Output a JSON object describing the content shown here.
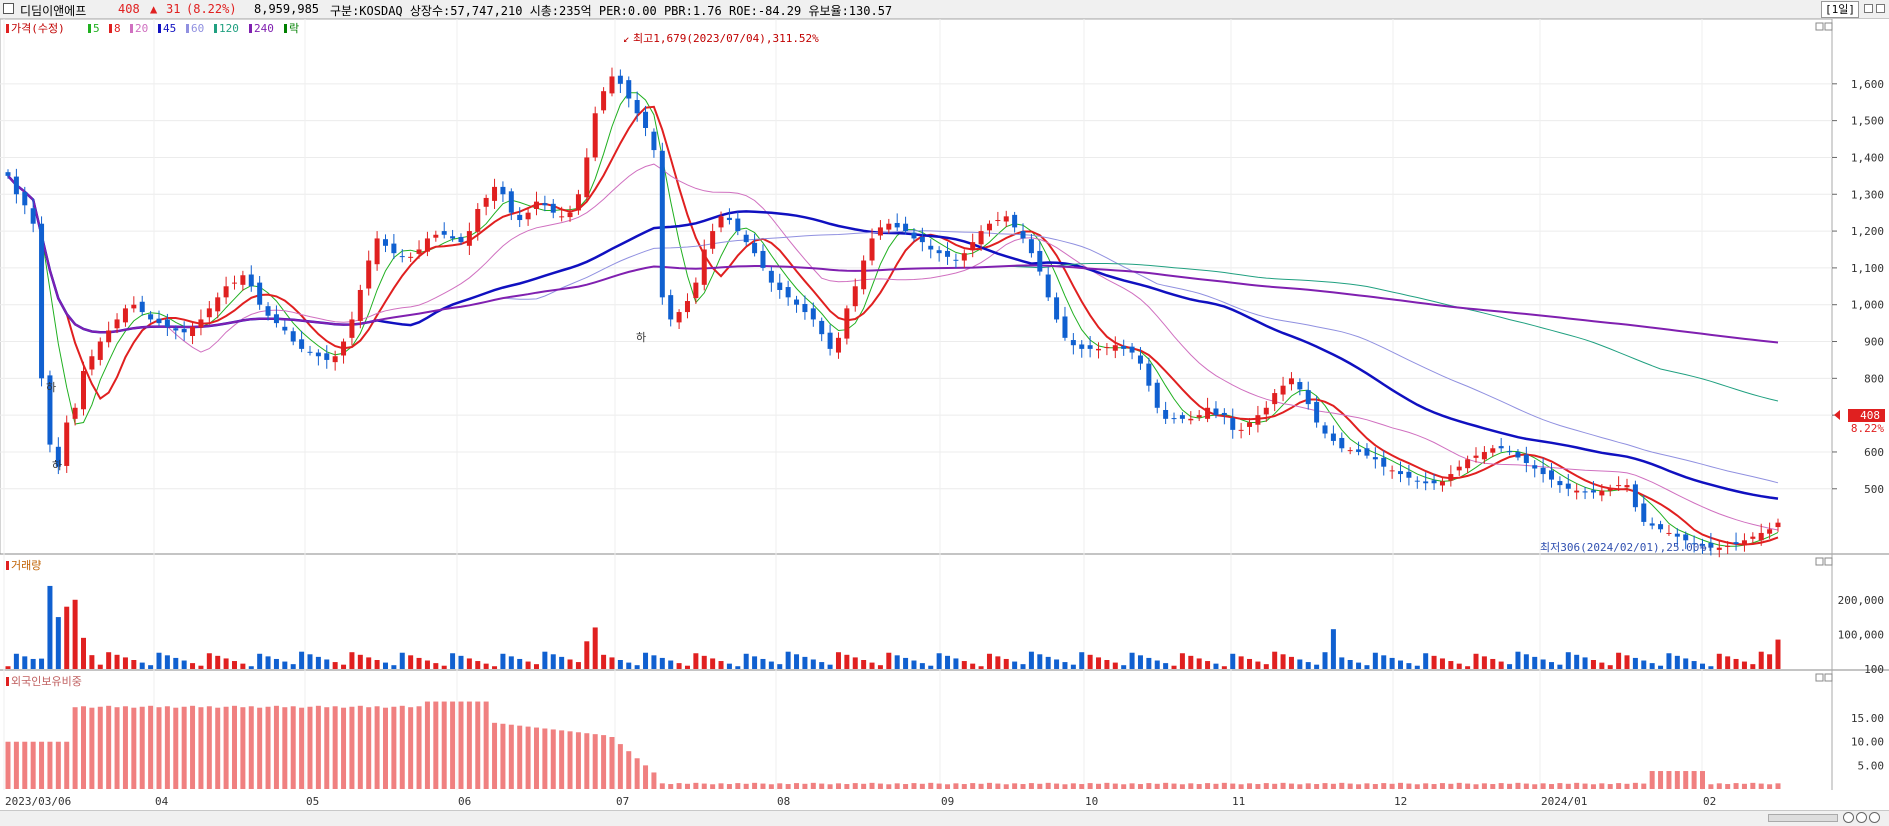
{
  "header": {
    "name": "디딤이앤에프",
    "price": "408",
    "change_arrow": "▲",
    "change": "31",
    "change_pct": "(8.22%)",
    "volume": "8,959,985",
    "info": "구분:KOSDAQ 상장수:57,747,210 시총:235억 PER:0.00 PBR:1.76 ROE:-84.29 유보율:130.57",
    "period": "[1일]"
  },
  "legend": {
    "price_label": "가격(수정)",
    "ma_labels": [
      "5",
      "8",
      "20",
      "45",
      "60",
      "120",
      "240"
    ],
    "ma_colors": [
      "#20b020",
      "#e02020",
      "#d070c0",
      "#1010c0",
      "#9090e0",
      "#20a080",
      "#8020b0"
    ],
    "fall_label": "락",
    "fall_color": "#008000"
  },
  "annotations": {
    "high": "최고1,679(2023/07/04),311.52%",
    "low": "최저306(2024/02/01),25.00%",
    "limit_down": "하"
  },
  "price_tag": {
    "value": "408",
    "pct": "8.22%"
  },
  "panels": {
    "volume_title": "거래량",
    "foreign_title": "외국인보유비중"
  },
  "colors": {
    "up": "#e02020",
    "down": "#1060d0",
    "foreign": "#f08080",
    "grid": "#e0e0e0"
  },
  "chart_data": [
    {
      "type": "candlestick",
      "title": "가격(수정)",
      "ylim": [
        306,
        1679
      ],
      "y_ticks": [
        "1,600",
        "1,500",
        "1,400",
        "1,300",
        "1,200",
        "1,100",
        "1,000",
        "900",
        "800",
        "700",
        "600",
        "500"
      ],
      "x_ticks": [
        "2023/03/06",
        "04",
        "05",
        "06",
        "07",
        "08",
        "09",
        "10",
        "11",
        "12",
        "2024/01",
        "02"
      ],
      "close_series": [
        1350,
        1300,
        1270,
        1220,
        800,
        620,
        560,
        680,
        720,
        820,
        860,
        900,
        930,
        960,
        990,
        1000,
        980,
        960,
        950,
        940,
        930,
        925,
        940,
        960,
        990,
        1020,
        1050,
        1060,
        1080,
        1050,
        1000,
        970,
        950,
        930,
        900,
        880,
        870,
        860,
        850,
        860,
        900,
        960,
        1040,
        1120,
        1180,
        1160,
        1140,
        1130,
        1130,
        1150,
        1180,
        1190,
        1190,
        1180,
        1170,
        1200,
        1260,
        1290,
        1320,
        1300,
        1250,
        1230,
        1250,
        1280,
        1270,
        1250,
        1240,
        1250,
        1300,
        1400,
        1520,
        1580,
        1620,
        1600,
        1560,
        1520,
        1480,
        1420,
        1020,
        960,
        980,
        1010,
        1060,
        1150,
        1200,
        1240,
        1230,
        1200,
        1170,
        1140,
        1100,
        1060,
        1040,
        1020,
        1000,
        980,
        960,
        920,
        880,
        910,
        990,
        1050,
        1120,
        1180,
        1210,
        1220,
        1210,
        1200,
        1180,
        1170,
        1150,
        1140,
        1130,
        1120,
        1140,
        1170,
        1200,
        1220,
        1230,
        1240,
        1210,
        1180,
        1140,
        1090,
        1020,
        960,
        910,
        890,
        880,
        880,
        880,
        885,
        890,
        880,
        870,
        840,
        780,
        720,
        690,
        690,
        690,
        690,
        700,
        720,
        700,
        700,
        660,
        660,
        680,
        700,
        720,
        760,
        780,
        800,
        770,
        730,
        680,
        650,
        630,
        610,
        605,
        600,
        590,
        580,
        560,
        550,
        540,
        530,
        520,
        515,
        515,
        520,
        540,
        560,
        580,
        590,
        600,
        610,
        610,
        600,
        585,
        570,
        555,
        540,
        525,
        510,
        500,
        495,
        490,
        490,
        495,
        500,
        510,
        510,
        450,
        410,
        400,
        390,
        380,
        370,
        360,
        350,
        345,
        340,
        340,
        345,
        350,
        360,
        370,
        380,
        390,
        408
      ],
      "volume_ylim": [
        0,
        260000
      ],
      "volume_ticks": [
        "200,000",
        "100,000",
        "100"
      ],
      "foreign_ylim": [
        0,
        22
      ],
      "foreign_ticks": [
        "15.00",
        "10.00",
        "5.00"
      ]
    }
  ]
}
